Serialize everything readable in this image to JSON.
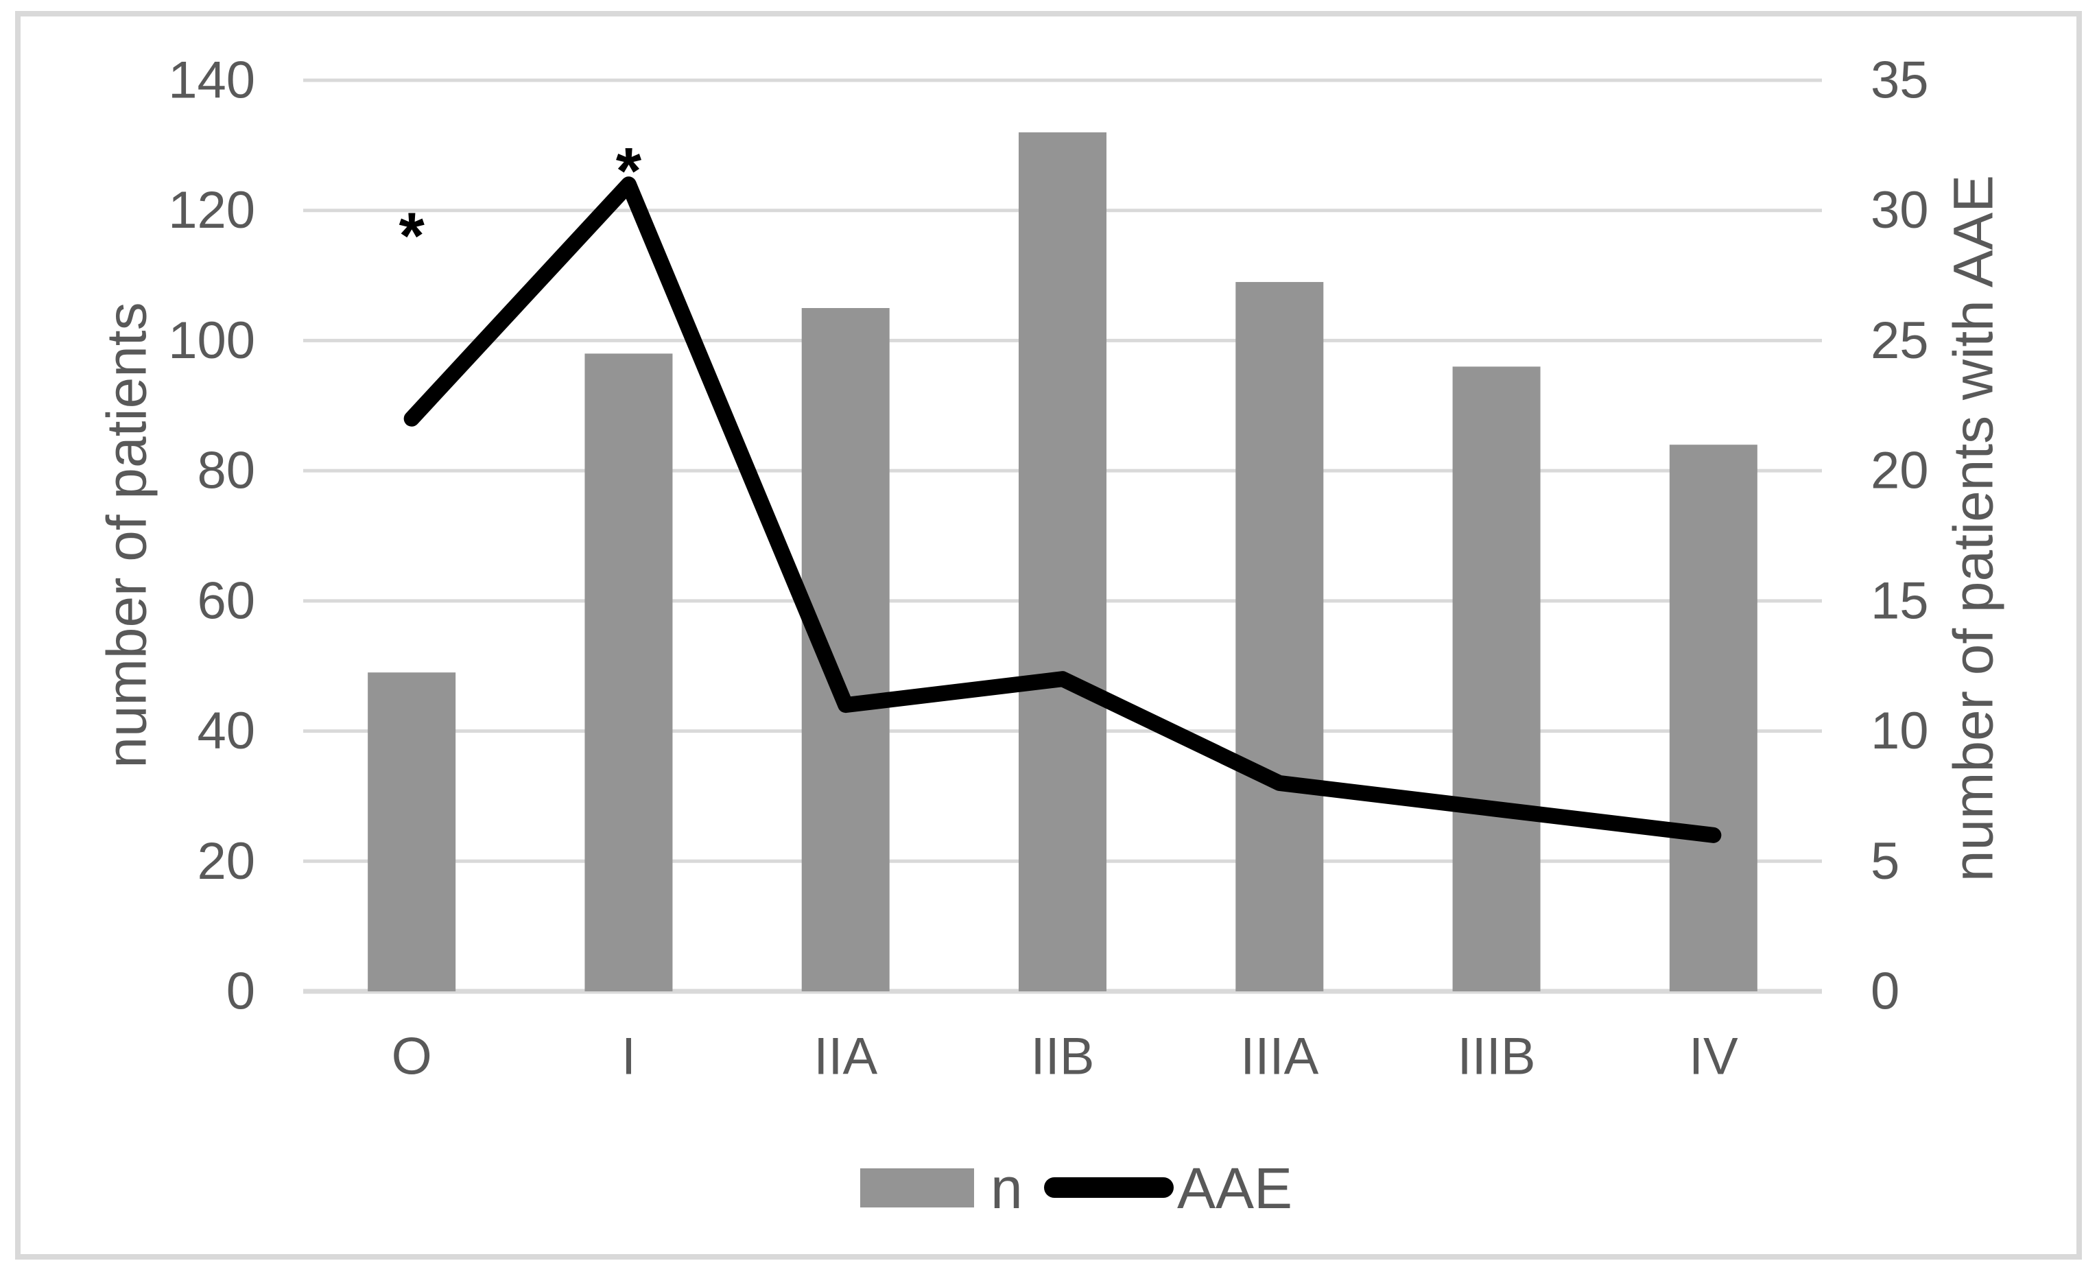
{
  "figure": {
    "description": "combination bar and line chart, dual y-axes",
    "background": "#FFFFFF",
    "border_color": "#D9D9D9"
  },
  "chart_data": {
    "type": "bar+line",
    "categories": [
      "O",
      "I",
      "IIA",
      "IIB",
      "IIIA",
      "IIIB",
      "IV"
    ],
    "series": [
      {
        "name": "n",
        "type": "bar",
        "axis": "left",
        "color": "#949494",
        "values": [
          49,
          98,
          105,
          132,
          109,
          96,
          84
        ]
      },
      {
        "name": "AAE",
        "type": "line",
        "axis": "right",
        "color": "#000000",
        "values": [
          22,
          31,
          11,
          12,
          8,
          7,
          6
        ]
      }
    ],
    "left_axis": {
      "label": "number of patients",
      "min": 0,
      "max": 140,
      "tick_step": 20,
      "tick_labels": [
        "140",
        "120",
        "100",
        "80",
        "60",
        "40",
        "20",
        "0"
      ],
      "text_color": "#595959"
    },
    "right_axis": {
      "label": "number of patients with AAE",
      "min": 0,
      "max": 35,
      "tick_step": 5,
      "tick_labels": [
        "35",
        "30",
        "25",
        "20",
        "15",
        "10",
        "5",
        "0"
      ],
      "text_color": "#595959"
    },
    "annotations": [
      {
        "text": "*",
        "category": "O",
        "left_axis_value": 120
      },
      {
        "text": "*",
        "category": "I",
        "left_axis_value": 130
      }
    ],
    "legend": {
      "position": "bottom-center",
      "entries": [
        "n",
        "AAE"
      ]
    },
    "gridlines": {
      "color": "#D9D9D9",
      "orientation": "horizontal"
    }
  }
}
